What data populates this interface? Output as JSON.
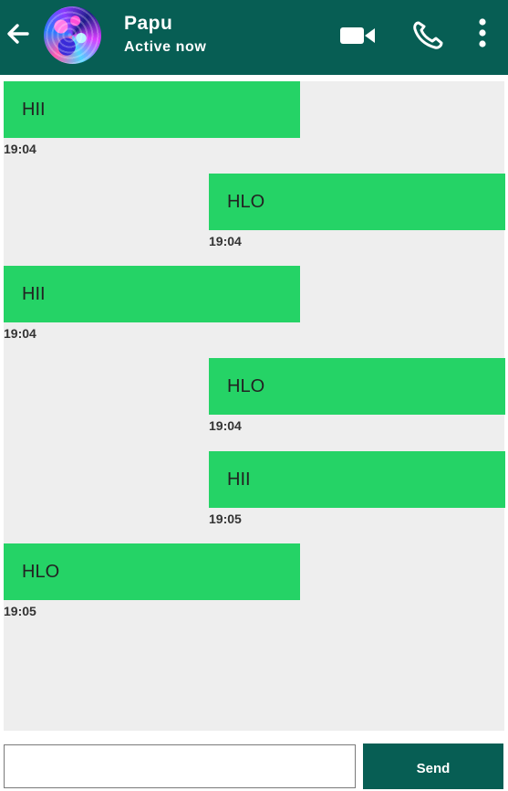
{
  "header": {
    "contact_name": "Papu",
    "status": "Active now",
    "icons": [
      "back-arrow-icon",
      "video-call-icon",
      "phone-icon",
      "more-vertical-icon"
    ],
    "background_color": "#075e54"
  },
  "messages": [
    {
      "side": "left",
      "text": "HII",
      "time": "19:04"
    },
    {
      "side": "right",
      "text": "HLO",
      "time": "19:04"
    },
    {
      "side": "left",
      "text": "HII",
      "time": "19:04"
    },
    {
      "side": "right",
      "text": "HLO",
      "time": "19:04"
    },
    {
      "side": "right",
      "text": "HII",
      "time": "19:05"
    },
    {
      "side": "left",
      "text": "HLO",
      "time": "19:05"
    }
  ],
  "composer": {
    "input_value": "",
    "input_placeholder": "",
    "send_label": "Send"
  },
  "colors": {
    "bubble": "#25d366",
    "chat_background": "#eeeeee"
  }
}
